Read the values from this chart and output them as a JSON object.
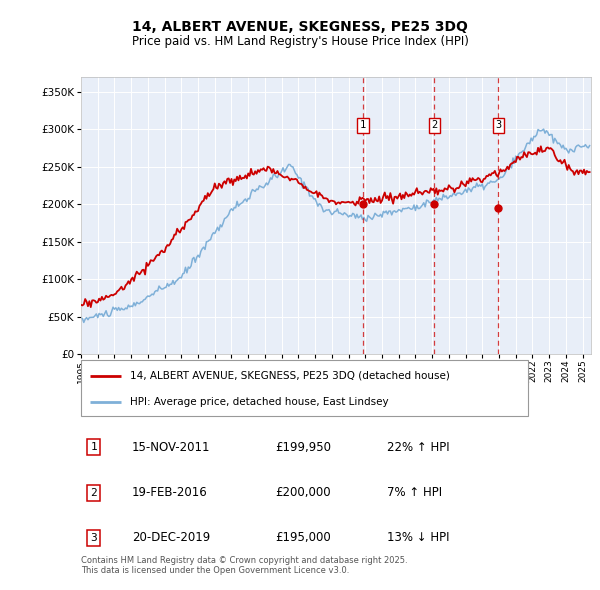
{
  "title1": "14, ALBERT AVENUE, SKEGNESS, PE25 3DQ",
  "title2": "Price paid vs. HM Land Registry's House Price Index (HPI)",
  "ylim": [
    0,
    370000
  ],
  "yticks": [
    0,
    50000,
    100000,
    150000,
    200000,
    250000,
    300000,
    350000
  ],
  "sale_year_floats": [
    2011.875,
    2016.125,
    2019.958
  ],
  "sale_prices": [
    199950,
    200000,
    195000
  ],
  "sale_labels": [
    "1",
    "2",
    "3"
  ],
  "sale_info": [
    [
      "1",
      "15-NOV-2011",
      "£199,950",
      "22% ↑ HPI"
    ],
    [
      "2",
      "19-FEB-2016",
      "£200,000",
      "7% ↑ HPI"
    ],
    [
      "3",
      "20-DEC-2019",
      "£195,000",
      "13% ↓ HPI"
    ]
  ],
  "legend_line1": "14, ALBERT AVENUE, SKEGNESS, PE25 3DQ (detached house)",
  "legend_line2": "HPI: Average price, detached house, East Lindsey",
  "footer": "Contains HM Land Registry data © Crown copyright and database right 2025.\nThis data is licensed under the Open Government Licence v3.0.",
  "bg_color": "#e8eef8",
  "red_color": "#cc0000",
  "blue_color": "#7fb0d8",
  "grid_color": "#ffffff",
  "xlim_start": 1995,
  "xlim_end": 2025.5
}
